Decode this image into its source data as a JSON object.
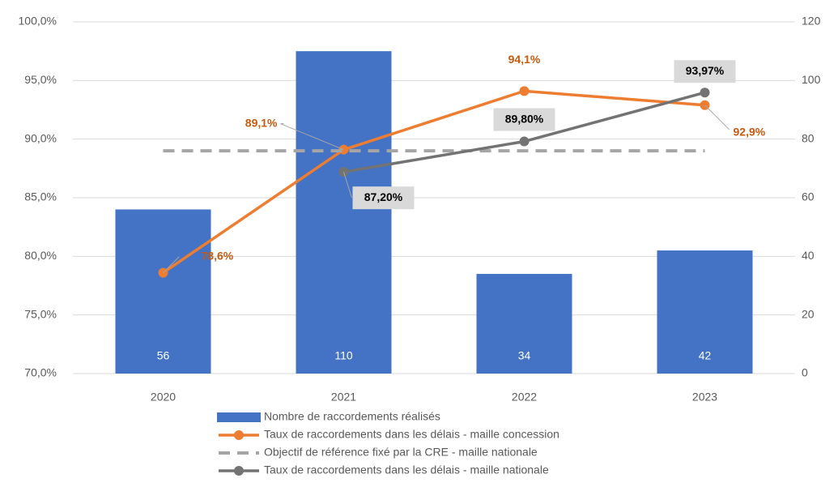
{
  "chart_data": {
    "type": "bar",
    "categories": [
      "2020",
      "2021",
      "2022",
      "2023"
    ],
    "ylim": [
      70,
      100
    ],
    "yticks": [
      {
        "value": 70,
        "label": "70,0%"
      },
      {
        "value": 75,
        "label": "75,0%"
      },
      {
        "value": 80,
        "label": "80,0%"
      },
      {
        "value": 85,
        "label": "85,0%"
      },
      {
        "value": 90,
        "label": "90,0%"
      },
      {
        "value": 95,
        "label": "95,0%"
      },
      {
        "value": 100,
        "label": "100,0%"
      }
    ],
    "y2lim": [
      0,
      120
    ],
    "y2ticks": [
      0,
      20,
      40,
      60,
      80,
      100,
      120
    ],
    "grid": true,
    "legend": "bottom",
    "series": [
      {
        "name": "Nombre de raccordements réalisés",
        "type": "bar",
        "axis": "y2",
        "color": "#4472c4",
        "values": [
          56,
          110,
          34,
          42
        ]
      },
      {
        "name": "Taux de raccordements dans les délais - maille concession",
        "type": "line",
        "color": "#ed7d31",
        "values": [
          78.6,
          89.1,
          94.1,
          92.9
        ],
        "value_labels": [
          "78,6%",
          "89,1%",
          "94,1%",
          "92,9%"
        ]
      },
      {
        "name": "Objectif de référence fixé par la CRE - maille nationale",
        "type": "line",
        "dash": true,
        "color": "#a5a5a5",
        "values": [
          89,
          89,
          89,
          89
        ]
      },
      {
        "name": "Taux de raccordements dans les délais - maille nationale",
        "type": "line",
        "color": "#737373",
        "values": [
          null,
          87.2,
          89.8,
          93.97
        ],
        "value_labels": [
          null,
          "87,20%",
          "89,80%",
          "93,97%"
        ]
      }
    ]
  }
}
